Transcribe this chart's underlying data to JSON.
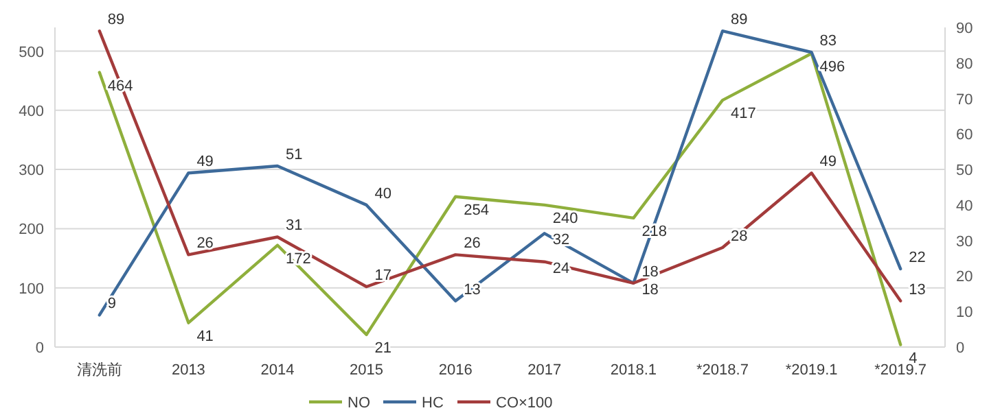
{
  "chart_data": {
    "type": "line",
    "categories": [
      "清洗前",
      "2013",
      "2014",
      "2015",
      "2016",
      "2017",
      "2018.1",
      "*2018.7",
      "*2019.1",
      "*2019.7"
    ],
    "series": [
      {
        "name": "NO",
        "color": "#8faf3c",
        "values": [
          464,
          41,
          172,
          21,
          254,
          240,
          218,
          417,
          496,
          4
        ]
      },
      {
        "name": "HC",
        "color": "#3d6a9a",
        "values": [
          9,
          49,
          51,
          40,
          13,
          32,
          18,
          89,
          83,
          22
        ],
        "axis": "y2"
      },
      {
        "name": "CO×100",
        "color": "#a33b3b",
        "values": [
          89,
          26,
          31,
          17,
          26,
          24,
          18,
          28,
          49,
          13
        ],
        "axis": "y2"
      }
    ],
    "ylim": [
      0,
      540
    ],
    "yticks": [
      0,
      100,
      200,
      300,
      400,
      500
    ],
    "y2lim": [
      0,
      90
    ],
    "y2ticks": [
      0,
      10,
      20,
      30,
      40,
      50,
      60,
      70,
      80,
      90
    ],
    "grid": "y",
    "legend": "bottom",
    "data_labels": true,
    "marker": "none",
    "line_style": "solid"
  }
}
